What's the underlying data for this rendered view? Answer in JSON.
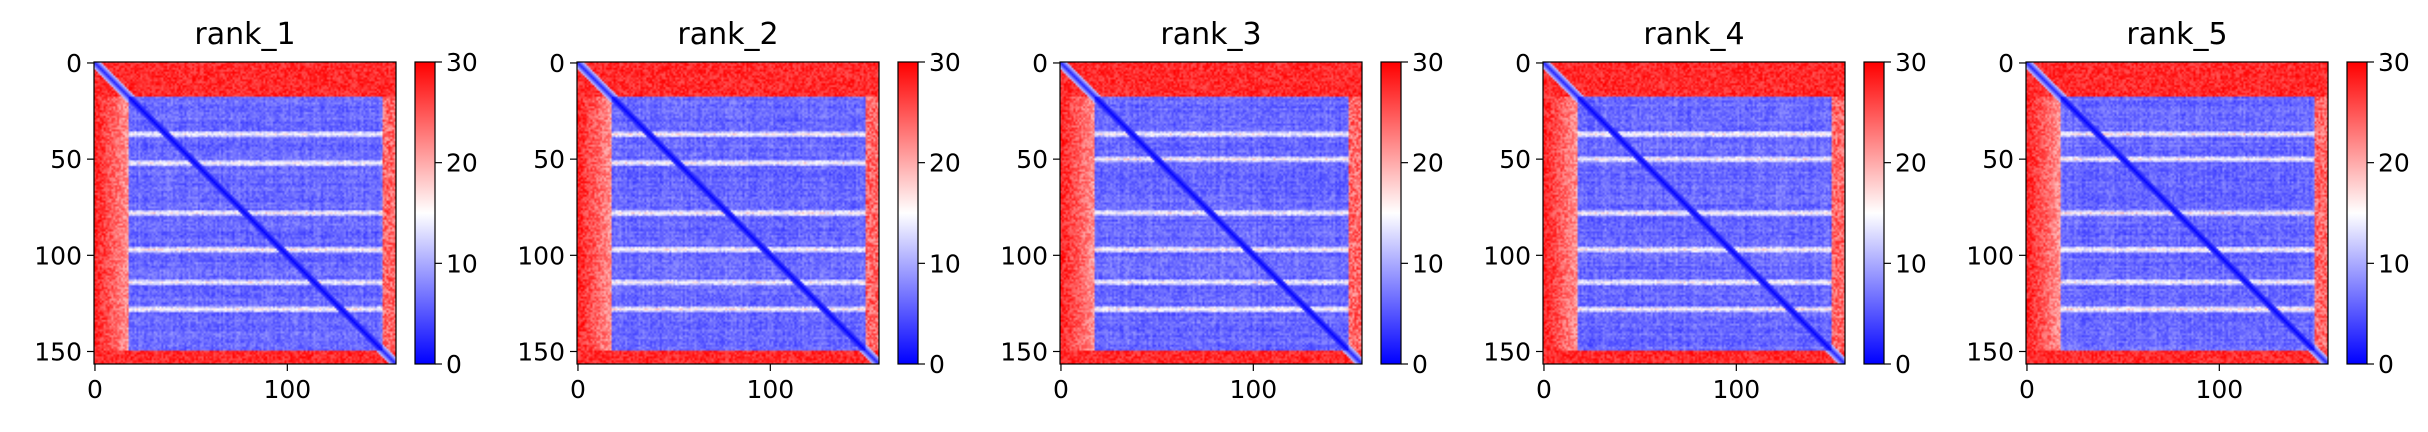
{
  "chart_data": [
    {
      "type": "heatmap",
      "title": "rank_1",
      "n": 157,
      "x_ticks": [
        0,
        100
      ],
      "y_ticks": [
        0,
        50,
        100,
        150
      ],
      "colorbar": {
        "cmap": "bwr",
        "min": 0,
        "max": 30,
        "ticks": [
          0,
          10,
          20,
          30
        ]
      },
      "colors": {
        "low": "#0000ff",
        "mid": "#ffffff",
        "high": "#ff0000"
      },
      "regions": {
        "disordered_n_terminus_end": 18,
        "disordered_c_terminus_start": 150
      },
      "contact_bands": [
        37,
        52,
        78,
        97,
        114,
        128
      ],
      "seed": 11
    },
    {
      "type": "heatmap",
      "title": "rank_2",
      "n": 157,
      "x_ticks": [
        0,
        100
      ],
      "y_ticks": [
        0,
        50,
        100,
        150
      ],
      "colorbar": {
        "cmap": "bwr",
        "min": 0,
        "max": 30,
        "ticks": [
          0,
          10,
          20,
          30
        ]
      },
      "colors": {
        "low": "#0000ff",
        "mid": "#ffffff",
        "high": "#ff0000"
      },
      "regions": {
        "disordered_n_terminus_end": 18,
        "disordered_c_terminus_start": 150
      },
      "contact_bands": [
        37,
        52,
        78,
        97,
        114,
        128
      ],
      "seed": 23
    },
    {
      "type": "heatmap",
      "title": "rank_3",
      "n": 157,
      "x_ticks": [
        0,
        100
      ],
      "y_ticks": [
        0,
        50,
        100,
        150
      ],
      "colorbar": {
        "cmap": "bwr",
        "min": 0,
        "max": 30,
        "ticks": [
          0,
          10,
          20,
          30
        ]
      },
      "colors": {
        "low": "#0000ff",
        "mid": "#ffffff",
        "high": "#ff0000"
      },
      "regions": {
        "disordered_n_terminus_end": 18,
        "disordered_c_terminus_start": 150
      },
      "contact_bands": [
        37,
        50,
        78,
        97,
        114,
        128
      ],
      "seed": 37
    },
    {
      "type": "heatmap",
      "title": "rank_4",
      "n": 157,
      "x_ticks": [
        0,
        100
      ],
      "y_ticks": [
        0,
        50,
        100,
        150
      ],
      "colorbar": {
        "cmap": "bwr",
        "min": 0,
        "max": 30,
        "ticks": [
          0,
          10,
          20,
          30
        ]
      },
      "colors": {
        "low": "#0000ff",
        "mid": "#ffffff",
        "high": "#ff0000"
      },
      "regions": {
        "disordered_n_terminus_end": 18,
        "disordered_c_terminus_start": 150
      },
      "contact_bands": [
        37,
        50,
        78,
        97,
        114,
        128
      ],
      "seed": 41
    },
    {
      "type": "heatmap",
      "title": "rank_5",
      "n": 157,
      "x_ticks": [
        0,
        100
      ],
      "y_ticks": [
        0,
        50,
        100,
        150
      ],
      "colorbar": {
        "cmap": "bwr",
        "min": 0,
        "max": 30,
        "ticks": [
          0,
          10,
          20,
          30
        ]
      },
      "colors": {
        "low": "#0000ff",
        "mid": "#ffffff",
        "high": "#ff0000"
      },
      "regions": {
        "disordered_n_terminus_end": 18,
        "disordered_c_terminus_start": 150
      },
      "contact_bands": [
        37,
        50,
        78,
        97,
        114,
        128
      ],
      "seed": 53
    }
  ]
}
